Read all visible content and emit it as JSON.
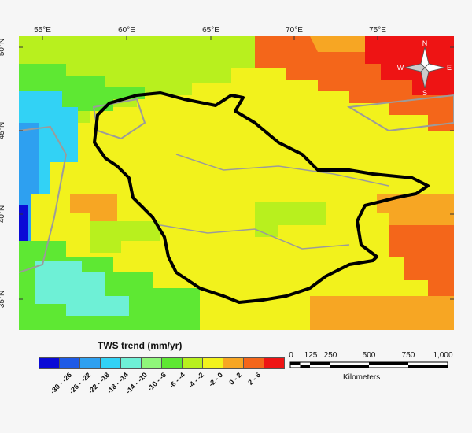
{
  "map": {
    "lon_labels": [
      "55°E",
      "60°E",
      "65°E",
      "70°E",
      "75°E"
    ],
    "lat_labels": [
      "50°N",
      "45°N",
      "40°N",
      "35°N"
    ],
    "compass": {
      "n": "N",
      "s": "S",
      "e": "E",
      "w": "W"
    }
  },
  "legend": {
    "title": "TWS trend (mm/yr)",
    "classes": [
      {
        "label": "-30 - -26",
        "color": "#0b0bd6"
      },
      {
        "label": "-26 - -22",
        "color": "#1e5ae6"
      },
      {
        "label": "-22 - -18",
        "color": "#2ea0f0"
      },
      {
        "label": "-18 - -14",
        "color": "#32d2f5"
      },
      {
        "label": "-14 - -10",
        "color": "#6ef0d6"
      },
      {
        "label": "-10 - -6",
        "color": "#8ff77a"
      },
      {
        "label": "-6 - -4",
        "color": "#5ee833"
      },
      {
        "label": "-4 - -2",
        "color": "#b8f01e"
      },
      {
        "label": "-2 - 0",
        "color": "#f2f21c"
      },
      {
        "label": "0 - 2",
        "color": "#f7a623"
      },
      {
        "label": "2 - 6",
        "color": "#f4661a"
      },
      {
        "label": "",
        "color": "#ee1414"
      }
    ]
  },
  "scalebar": {
    "ticks": [
      "0",
      "125",
      "250",
      "500",
      "750",
      "1,000"
    ],
    "unit": "Kilometers"
  }
}
